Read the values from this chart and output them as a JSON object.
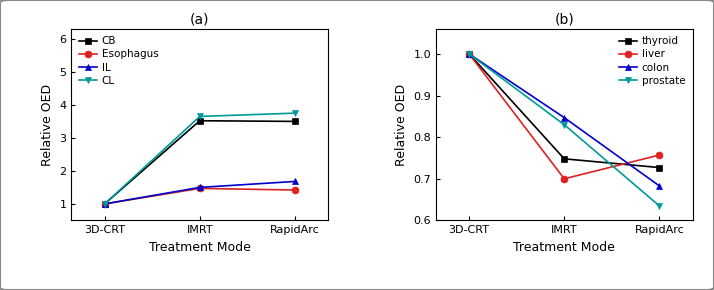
{
  "panel_a": {
    "title": "(a)",
    "xlabel": "Treatment Mode",
    "ylabel": "Relative OED",
    "xticks": [
      "3D-CRT",
      "IMRT",
      "RapidArc"
    ],
    "ylim": [
      0.5,
      6.3
    ],
    "yticks": [
      1,
      2,
      3,
      4,
      5,
      6
    ],
    "series": [
      {
        "label": "CB",
        "color": "#000000",
        "marker": "s",
        "markersize": 5,
        "values": [
          1.0,
          3.52,
          3.5
        ]
      },
      {
        "label": "Esophagus",
        "color": "#dd2222",
        "marker": "o",
        "markersize": 5,
        "values": [
          1.0,
          1.47,
          1.42
        ]
      },
      {
        "label": "IL",
        "color": "#0000cc",
        "marker": "^",
        "markersize": 5,
        "values": [
          1.0,
          1.5,
          1.68
        ]
      },
      {
        "label": "CL",
        "color": "#009999",
        "marker": "v",
        "markersize": 5,
        "values": [
          1.0,
          3.65,
          3.75
        ]
      }
    ]
  },
  "panel_b": {
    "title": "(b)",
    "xlabel": "Treatment Mode",
    "ylabel": "Relative OED",
    "xticks": [
      "3D-CRT",
      "IMRT",
      "RapidArc"
    ],
    "ylim": [
      0.6,
      1.06
    ],
    "yticks": [
      0.6,
      0.7,
      0.8,
      0.9,
      1.0
    ],
    "series": [
      {
        "label": "thyroid",
        "color": "#000000",
        "marker": "s",
        "markersize": 5,
        "values": [
          1.0,
          0.748,
          0.727
        ]
      },
      {
        "label": "liver",
        "color": "#dd2222",
        "marker": "o",
        "markersize": 5,
        "values": [
          1.0,
          0.7,
          0.757
        ]
      },
      {
        "label": "colon",
        "color": "#0000cc",
        "marker": "^",
        "markersize": 5,
        "values": [
          1.0,
          0.847,
          0.683
        ]
      },
      {
        "label": "prostate",
        "color": "#009999",
        "marker": "v",
        "markersize": 5,
        "values": [
          1.0,
          0.83,
          0.635
        ]
      }
    ]
  },
  "figure_bg": "#f0f0f0",
  "axes_bg": "#ffffff",
  "linewidth": 1.2,
  "fontsize_title": 10,
  "fontsize_label": 9,
  "fontsize_tick": 8,
  "fontsize_legend": 7.5
}
